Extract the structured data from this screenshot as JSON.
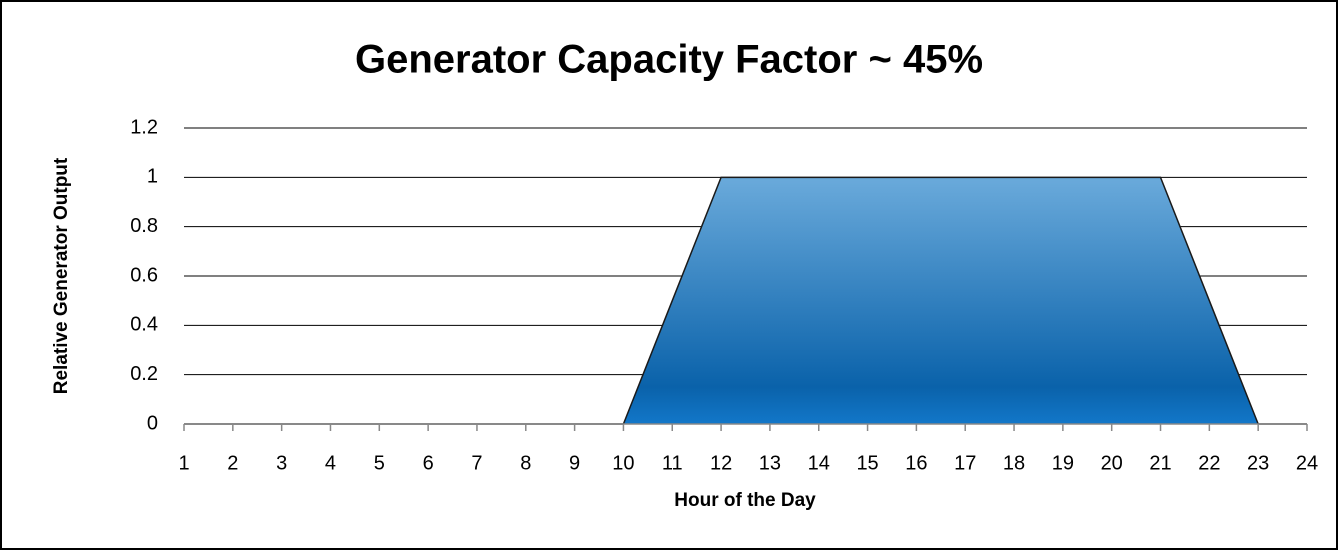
{
  "chart_data": {
    "type": "area",
    "title": "Generator Capacity Factor ~ 45%",
    "x_label": "Hour of the Day",
    "y_label": "Relative Generator Output",
    "x": [
      1,
      2,
      3,
      4,
      5,
      6,
      7,
      8,
      9,
      10,
      11,
      12,
      13,
      14,
      15,
      16,
      17,
      18,
      19,
      20,
      21,
      22,
      23,
      24
    ],
    "values": [
      0,
      0,
      0,
      0,
      0,
      0,
      0,
      0,
      0,
      0,
      0.5,
      1,
      1,
      1,
      1,
      1,
      1,
      1,
      1,
      1,
      1,
      0.5,
      0,
      0
    ],
    "color": "#2a7fc0",
    "xlim": [
      1,
      24
    ],
    "xticks": [
      1,
      2,
      3,
      4,
      5,
      6,
      7,
      8,
      9,
      10,
      11,
      12,
      13,
      14,
      15,
      16,
      17,
      18,
      19,
      20,
      21,
      22,
      23,
      24
    ],
    "ylim": [
      0,
      1.2
    ],
    "yticks": [
      0,
      0.2,
      0.4,
      0.6,
      0.8,
      1,
      1.2
    ],
    "grid": true
  }
}
